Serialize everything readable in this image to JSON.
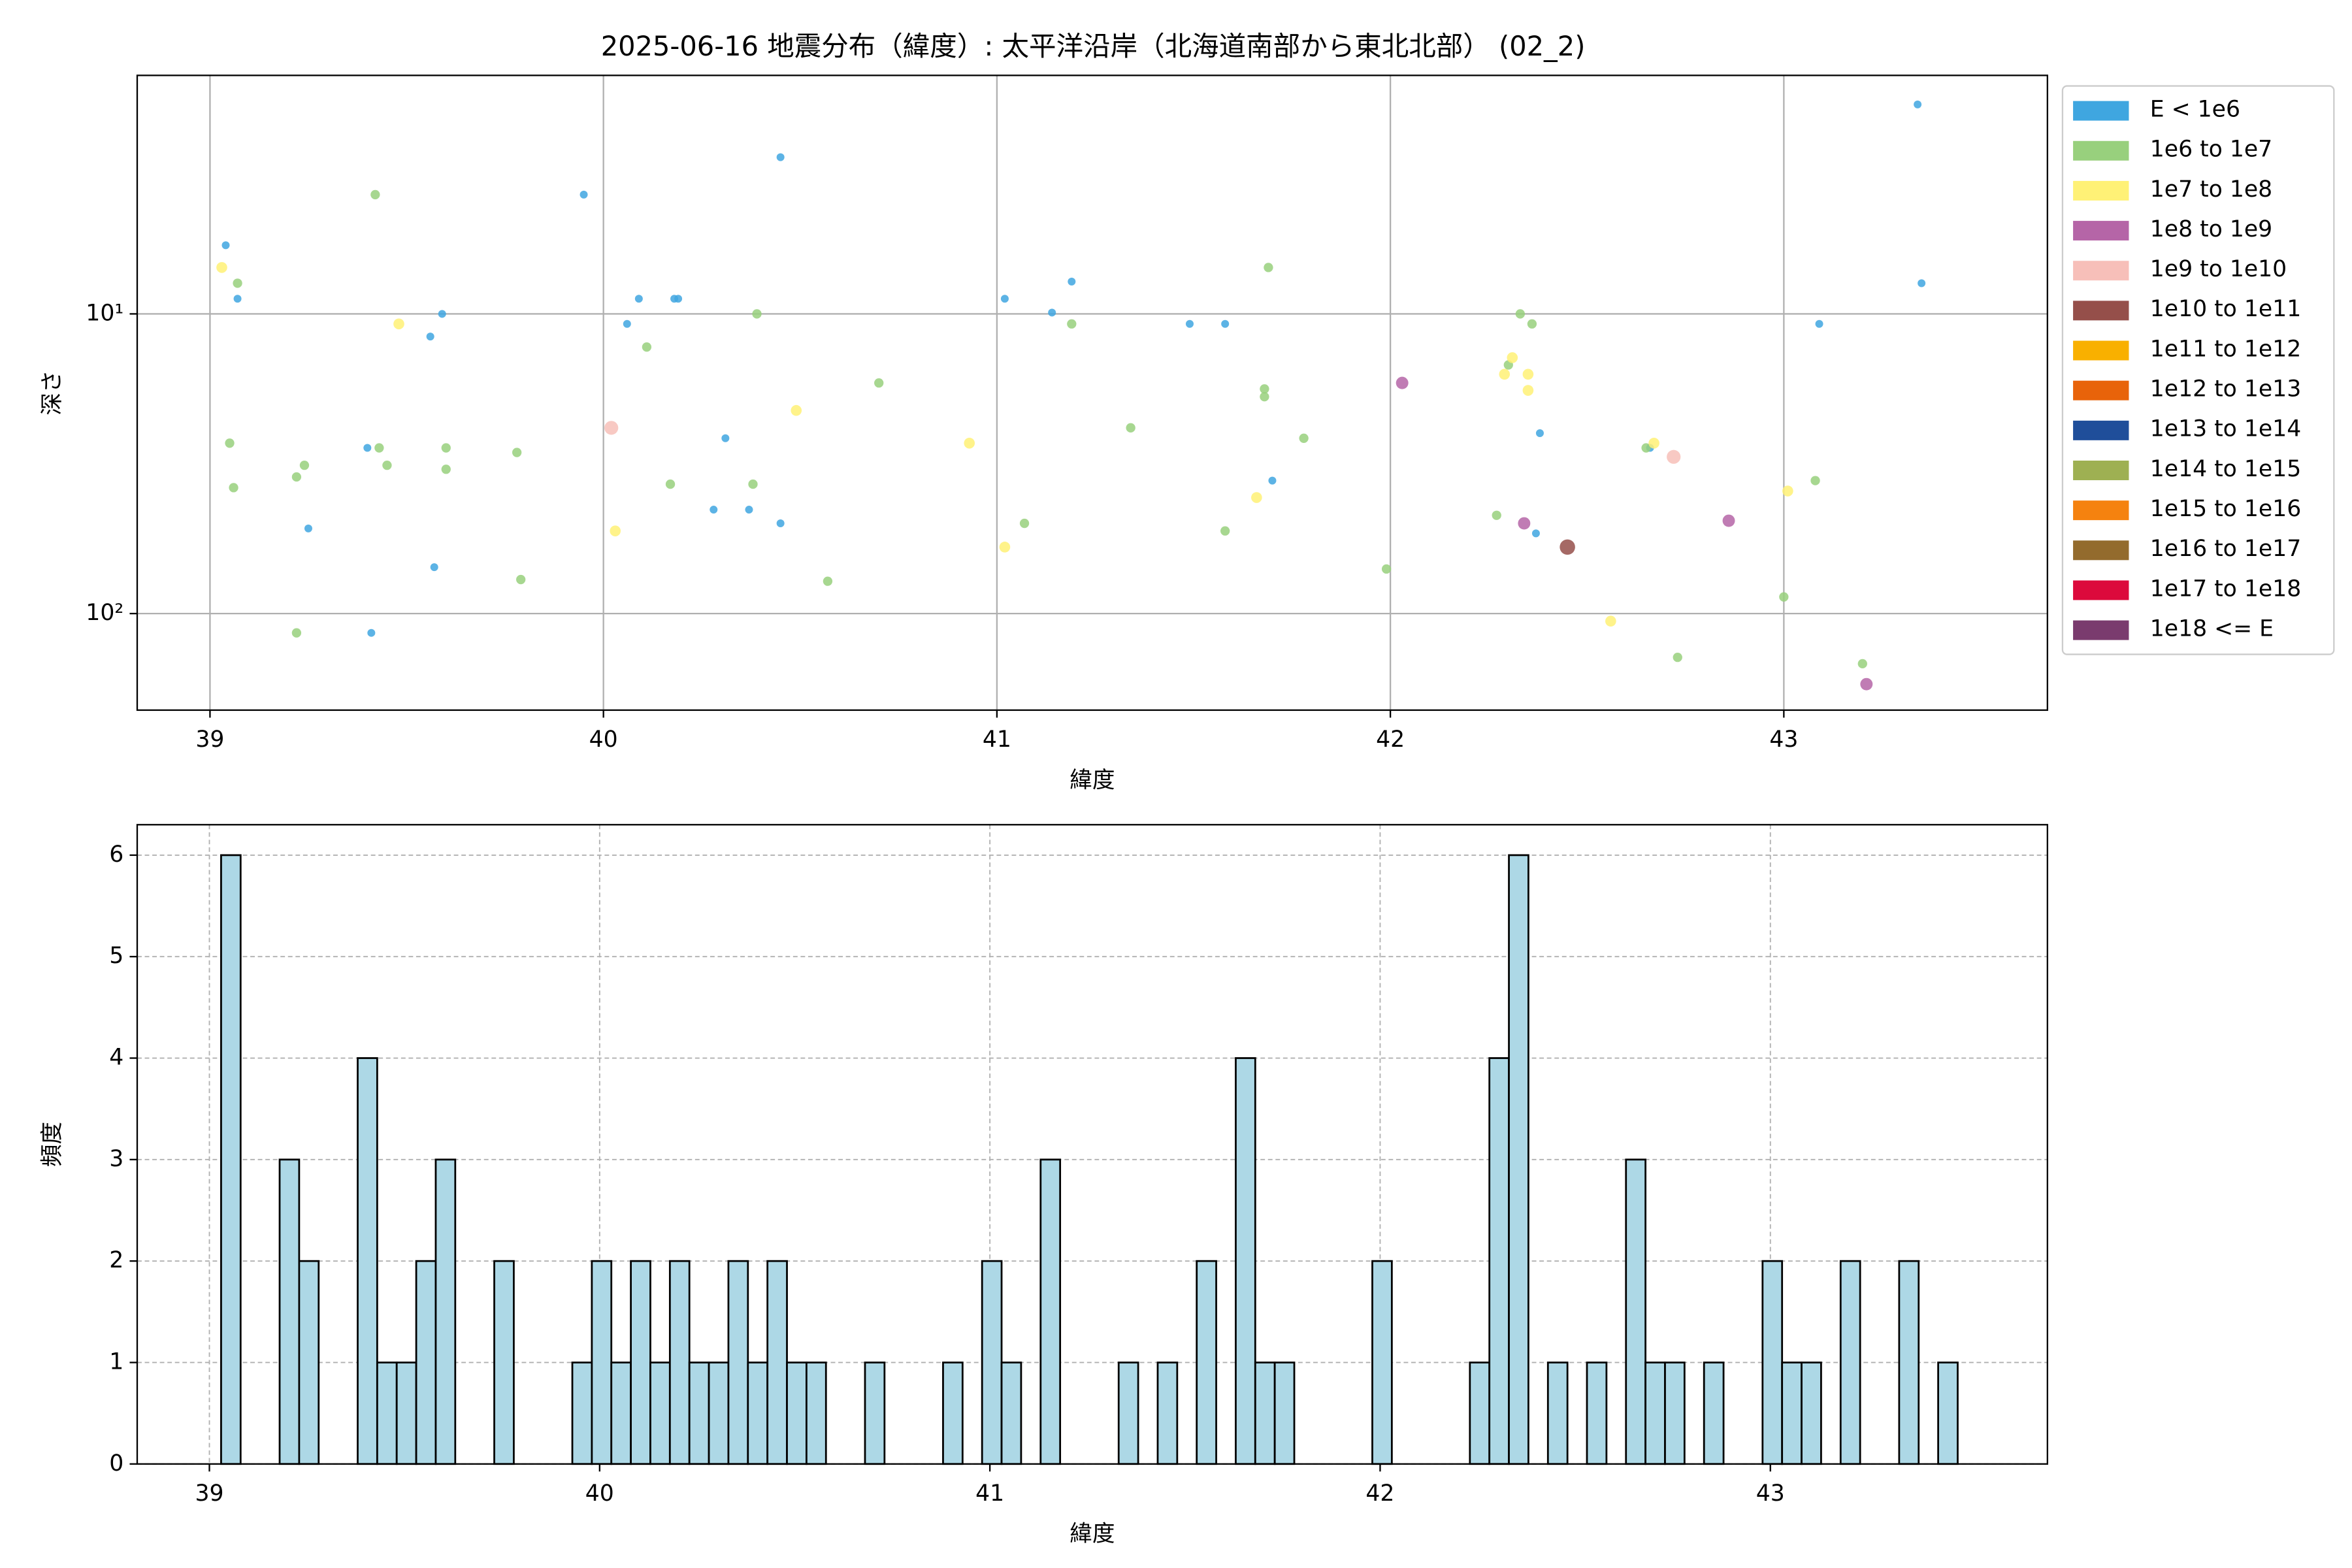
{
  "chart_data": [
    {
      "type": "scatter",
      "title": "2025-06-16 地震分布（緯度）: 太平洋沿岸（北海道南部から東北北部） (02_2)",
      "xlabel": "緯度",
      "ylabel": "深さ",
      "xlim": [
        38.815,
        43.67
      ],
      "xticks": [
        39,
        40,
        41,
        42,
        43
      ],
      "ylim": [
        1.6,
        210
      ],
      "y_scale": "log",
      "y_inverted": true,
      "yticks": [
        {
          "value": 10,
          "label": "10¹"
        },
        {
          "value": 100,
          "label": "10²"
        }
      ],
      "grid": true,
      "legend": "outside right",
      "series": [
        {
          "name": "E < 1e6",
          "color": "#3fa6e0",
          "x": [
            39.04,
            39.07,
            39.41,
            39.4,
            39.25,
            39.56,
            39.59,
            39.57,
            39.95,
            40.06,
            40.09,
            40.18,
            40.19,
            40.45,
            40.31,
            40.28,
            40.37,
            40.45,
            41.02,
            41.14,
            41.19,
            41.49,
            41.58,
            41.7,
            42.38,
            42.37,
            42.66,
            43.34,
            43.35,
            43.09
          ],
          "y": [
            5.9,
            8.9,
            116,
            28,
            52,
            11.9,
            10,
            70,
            4.0,
            10.8,
            8.9,
            8.9,
            8.9,
            3.0,
            26,
            45,
            45,
            50,
            8.9,
            9.9,
            7.8,
            10.8,
            10.8,
            36,
            25,
            54,
            28,
            2.0,
            7.9,
            10.8
          ]
        },
        {
          "name": "1e6 to 1e7",
          "color": "#98d07d",
          "x": [
            39.07,
            39.05,
            39.06,
            39.22,
            39.24,
            39.22,
            39.42,
            39.43,
            39.45,
            39.6,
            39.6,
            39.78,
            39.79,
            40.11,
            40.17,
            40.38,
            40.39,
            40.57,
            40.7,
            41.07,
            41.19,
            41.34,
            41.58,
            41.68,
            41.68,
            41.69,
            41.78,
            41.99,
            42.27,
            42.3,
            42.33,
            42.36,
            42.65,
            43.0,
            43.08,
            42.73,
            43.2
          ],
          "y": [
            7.9,
            27,
            38,
            35,
            32,
            116,
            4.0,
            28,
            32,
            28,
            33,
            29,
            77,
            12.9,
            37,
            37,
            10,
            78,
            17,
            50,
            10.8,
            24,
            53,
            17.8,
            18.9,
            7.0,
            26,
            71,
            47,
            14.8,
            10,
            10.8,
            28,
            88,
            36,
            140,
            147
          ]
        },
        {
          "name": "1e7 to 1e8",
          "color": "#fff176",
          "x": [
            39.03,
            39.48,
            40.03,
            40.49,
            40.93,
            41.02,
            41.66,
            42.29,
            42.31,
            42.35,
            42.35,
            42.67,
            42.56,
            43.01
          ],
          "y": [
            7.0,
            10.8,
            53,
            21,
            27,
            60,
            41,
            15.9,
            14,
            15.9,
            18,
            27,
            106,
            39
          ]
        },
        {
          "name": "1e8 to 1e9",
          "color": "#b565a7",
          "x": [
            42.03,
            42.34,
            42.86,
            43.21
          ],
          "y": [
            17,
            50,
            49,
            172
          ]
        },
        {
          "name": "1e9 to 1e10",
          "color": "#f7bfb9",
          "x": [
            40.02,
            42.72
          ],
          "y": [
            24,
            30
          ]
        },
        {
          "name": "1e10 to 1e11",
          "color": "#954f4a",
          "x": [
            42.45
          ],
          "y": [
            60
          ]
        },
        {
          "name": "1e11 to 1e12",
          "color": "#f9b000",
          "x": [],
          "y": []
        },
        {
          "name": "1e12 to 1e13",
          "color": "#e8630a",
          "x": [],
          "y": []
        },
        {
          "name": "1e13 to 1e14",
          "color": "#1f4e9a",
          "x": [],
          "y": []
        },
        {
          "name": "1e14 to 1e15",
          "color": "#9eb052",
          "x": [],
          "y": []
        },
        {
          "name": "1e15 to 1e16",
          "color": "#f5820f",
          "x": [],
          "y": []
        },
        {
          "name": "1e16 to 1e17",
          "color": "#936b2d",
          "x": [],
          "y": []
        },
        {
          "name": "1e17 to 1e18",
          "color": "#dc0a3c",
          "x": [],
          "y": []
        },
        {
          "name": "1e18 <= E",
          "color": "#7a3b6e",
          "x": [],
          "y": []
        }
      ]
    },
    {
      "type": "histogram",
      "xlabel": "緯度",
      "ylabel": "頻度",
      "xlim": [
        38.815,
        43.71
      ],
      "xticks": [
        39,
        40,
        41,
        42,
        43
      ],
      "ylim": [
        0,
        6.3
      ],
      "yticks": [
        0,
        1,
        2,
        3,
        4,
        5,
        6
      ],
      "grid": true,
      "color": "#add8e6",
      "edgecolor": "#000000",
      "bins": [
        39.03,
        39.08,
        39.13,
        39.18,
        39.23,
        39.28,
        39.33,
        39.38,
        39.43,
        39.48,
        39.53,
        39.58,
        39.63,
        39.68,
        39.73,
        39.78,
        39.83,
        39.88,
        39.93,
        39.98,
        40.03,
        40.08,
        40.13,
        40.18,
        40.23,
        40.28,
        40.33,
        40.38,
        40.43,
        40.48,
        40.53,
        40.58,
        40.63,
        40.68,
        40.73,
        40.78,
        40.83,
        40.88,
        40.93,
        40.98,
        41.03,
        41.08,
        41.13,
        41.18,
        41.23,
        41.28,
        41.33,
        41.38,
        41.43,
        41.48,
        41.53,
        41.58,
        41.63,
        41.68,
        41.73,
        41.78,
        41.83,
        41.88,
        41.93,
        41.98,
        42.03,
        42.08,
        42.13,
        42.18,
        42.23,
        42.28,
        42.33,
        42.38,
        42.43,
        42.48,
        42.53,
        42.58,
        42.63,
        42.68,
        42.73,
        42.78,
        42.83,
        42.88,
        42.93,
        42.98,
        43.03,
        43.08,
        43.13,
        43.18,
        43.23,
        43.28,
        43.33,
        43.38,
        43.43,
        43.48
      ],
      "counts": [
        6,
        0,
        0,
        3,
        2,
        0,
        0,
        4,
        1,
        1,
        2,
        3,
        0,
        0,
        2,
        0,
        0,
        0,
        1,
        2,
        1,
        2,
        1,
        2,
        1,
        1,
        2,
        1,
        2,
        1,
        1,
        0,
        0,
        1,
        0,
        0,
        0,
        1,
        0,
        2,
        1,
        0,
        3,
        0,
        0,
        0,
        1,
        0,
        1,
        0,
        2,
        0,
        4,
        1,
        1,
        0,
        0,
        0,
        0,
        2,
        0,
        0,
        0,
        0,
        1,
        4,
        6,
        0,
        1,
        0,
        1,
        0,
        3,
        1,
        1,
        0,
        1,
        0,
        0,
        2,
        1,
        1,
        0,
        2,
        0,
        0,
        2,
        0,
        1
      ]
    }
  ]
}
